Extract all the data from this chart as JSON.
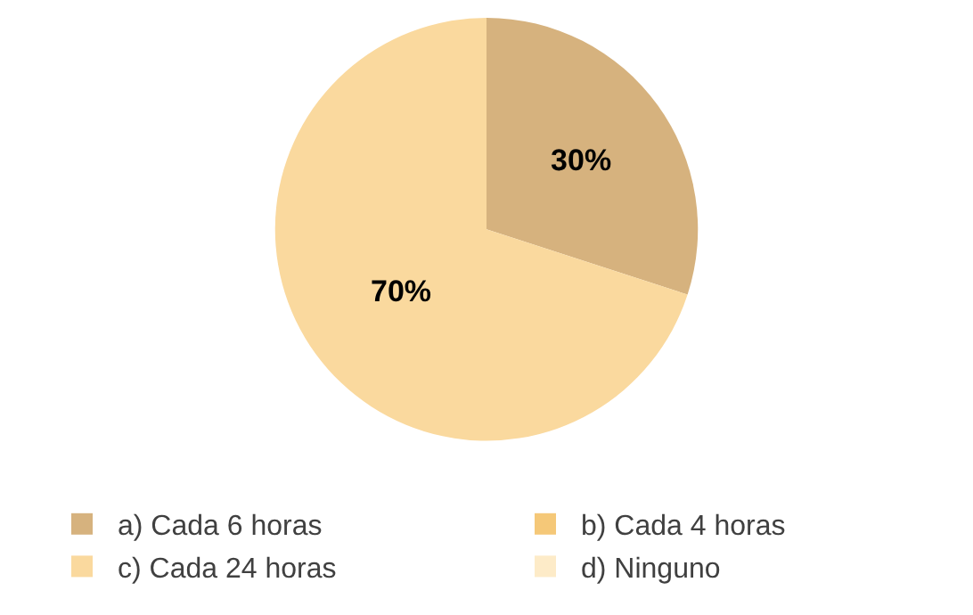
{
  "chart_data": {
    "type": "pie",
    "categories": [
      "a) Cada 6 horas",
      "b) Cada 4 horas",
      "c) Cada 24 horas",
      "d) Ninguno"
    ],
    "values": [
      30,
      0,
      70,
      0
    ],
    "colors": [
      "#d6b27e",
      "#f5c878",
      "#fad99e",
      "#fdebc8"
    ],
    "value_labels": [
      "30%",
      null,
      "70%",
      null
    ],
    "legend": "bottom"
  }
}
